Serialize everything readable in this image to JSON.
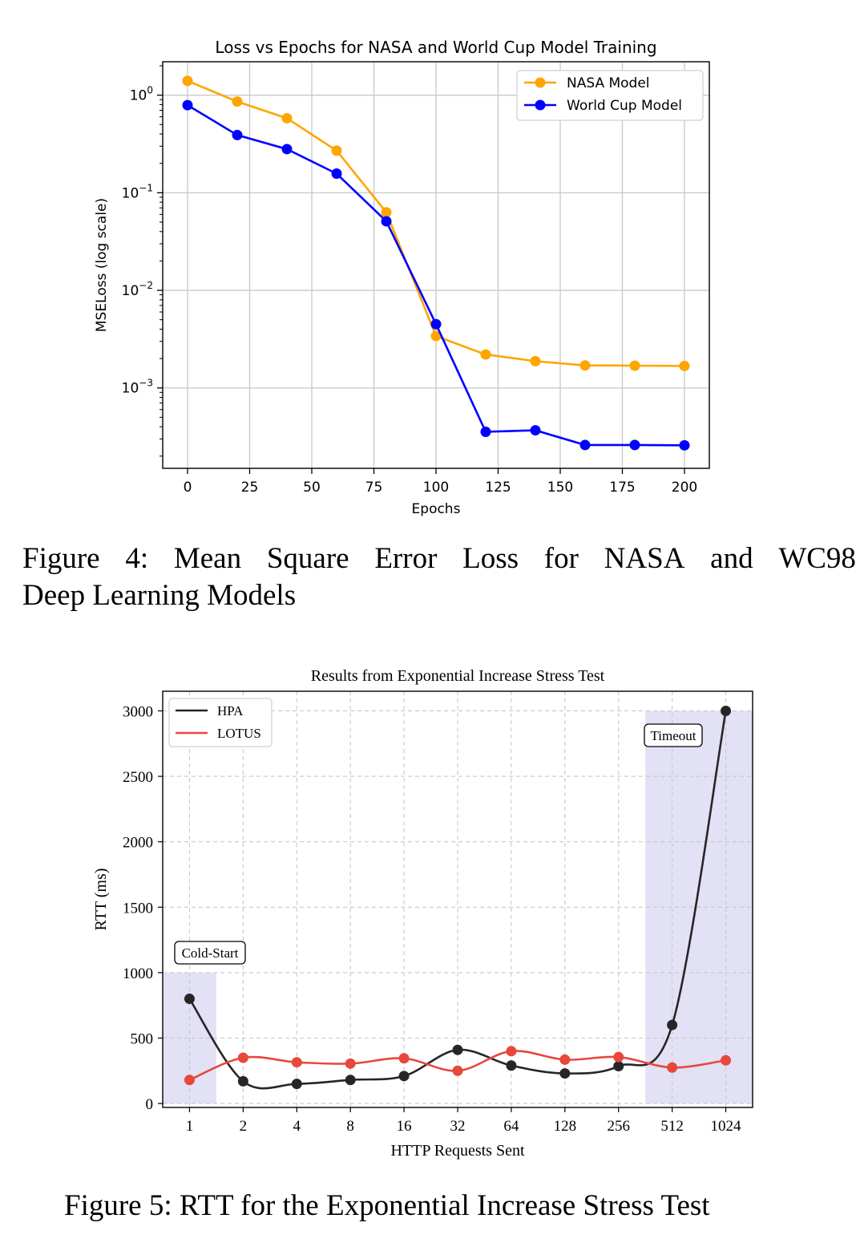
{
  "charts": [
    {
      "chart_data": {
        "type": "line",
        "title": "Loss vs Epochs for NASA and World Cup Model Training",
        "xlabel": "Epochs",
        "ylabel": "MSELoss (log scale)",
        "yscale": "log",
        "xlim": [
          -10,
          210
        ],
        "ylim": [
          0.00015,
          2.2
        ],
        "xticks": [
          0,
          25,
          50,
          75,
          100,
          125,
          150,
          175,
          200
        ],
        "yticks": [
          {
            "value": 1,
            "exp": "0"
          },
          {
            "value": 0.1,
            "exp": "−1"
          },
          {
            "value": 0.01,
            "exp": "−2"
          },
          {
            "value": 0.001,
            "exp": "−3"
          }
        ],
        "grid": true,
        "legend": "top-right",
        "x": [
          0,
          20,
          40,
          60,
          80,
          100,
          120,
          140,
          160,
          180,
          200
        ],
        "series": [
          {
            "name": "NASA Model",
            "color": "#FFA500",
            "values": [
              1.4,
              0.86,
              0.58,
              0.27,
              0.063,
              0.0034,
              0.0022,
              0.00188,
              0.0017,
              0.00169,
              0.00168
            ]
          },
          {
            "name": "World Cup Model",
            "color": "#0000FF",
            "values": [
              0.79,
              0.39,
              0.28,
              0.157,
              0.051,
              0.0045,
              0.000355,
              0.000368,
              0.00026,
              0.00026,
              0.000258
            ]
          }
        ]
      }
    },
    {
      "chart_data": {
        "type": "line",
        "title": "Results from Exponential Increase Stress Test",
        "xlabel": "HTTP Requests Sent",
        "ylabel": "RTT (ms)",
        "categories": [
          "1",
          "2",
          "4",
          "8",
          "16",
          "32",
          "64",
          "128",
          "256",
          "512",
          "1024"
        ],
        "ylim": [
          -30,
          3150
        ],
        "yticks": [
          0,
          500,
          1000,
          1500,
          2000,
          2500,
          3000
        ],
        "grid": true,
        "legend": "top-left",
        "series": [
          {
            "name": "HPA",
            "color": "#262626",
            "values": [
              800,
              170,
              150,
              180,
              210,
              410,
              290,
              230,
              285,
              600,
              3000
            ]
          },
          {
            "name": "LOTUS",
            "color": "#E8473C",
            "values": [
              180,
              350,
              315,
              305,
              345,
              250,
              400,
              335,
              355,
              275,
              330
            ]
          }
        ],
        "shaded_regions": [
          {
            "label": "Cold-Start",
            "x": [
              -0.5,
              0.5
            ],
            "y": [
              0,
              1000
            ]
          },
          {
            "label": "Timeout",
            "x": [
              8.5,
              10.5
            ],
            "y": [
              0,
              3000
            ]
          }
        ],
        "shade_color": "#E2E1F5"
      }
    }
  ],
  "captions": {
    "fig4_line1": [
      "Figure",
      "4:",
      "Mean",
      "Square",
      "Error",
      "Loss",
      "for",
      "NASA",
      "and",
      "WC98"
    ],
    "fig4_line2": "Deep Learning Models",
    "fig5": "Figure 5: RTT for the Exponential Increase Stress Test"
  }
}
